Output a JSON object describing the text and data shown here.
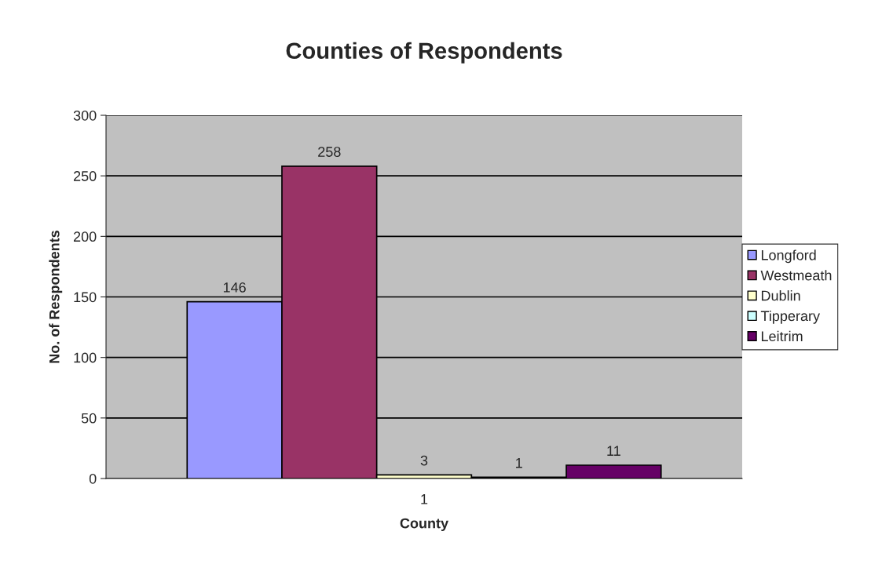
{
  "chart_data": {
    "type": "bar",
    "title": "Counties of Respondents",
    "xlabel": "County",
    "ylabel": "No. of Respondents",
    "categories": [
      "1"
    ],
    "series": [
      {
        "name": "Longford",
        "color": "#9999ff",
        "values": [
          146
        ]
      },
      {
        "name": "Westmeath",
        "color": "#993366",
        "values": [
          258
        ]
      },
      {
        "name": "Dublin",
        "color": "#ffffcc",
        "values": [
          3
        ]
      },
      {
        "name": "Tipperary",
        "color": "#ccffff",
        "values": [
          1
        ]
      },
      {
        "name": "Leitrim",
        "color": "#660066",
        "values": [
          11
        ]
      }
    ],
    "ylim": [
      0,
      300
    ],
    "yticks": [
      0,
      50,
      100,
      150,
      200,
      250,
      300
    ],
    "grid": "y",
    "legend": "right",
    "data_labels": true
  }
}
